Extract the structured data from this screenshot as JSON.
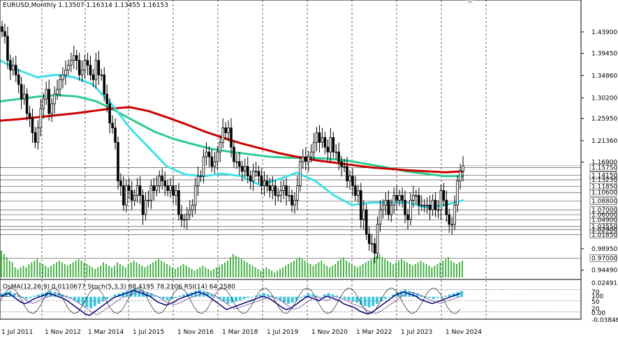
{
  "header": {
    "symbol_line": "EURUSD,Monthly  1.13507 1.16314 1.13455 1.16153"
  },
  "indicator_header": {
    "label": "OsMA(12,26,9) 0.0110677  Stoch(5,3,3) 88.4195 78.2106  RSI(14) 64.2580"
  },
  "colors": {
    "background": "#ffffff",
    "candle": "#000000",
    "ma_red": "#cc0000",
    "ma_green": "#2ecc8f",
    "ma_cyan": "#40e0e8",
    "volume": "#33aa33",
    "osma": "#40c8e0",
    "stoch_main": "#000080",
    "stoch_signal": "#000000",
    "rsi": "#7a4a9a",
    "grid": "#000000",
    "price_box": "#ffffff",
    "current_box": "#ffffff"
  },
  "chart_data": {
    "type": "candlestick",
    "symbol": "EURUSD",
    "timeframe": "Monthly",
    "ohlc_last": {
      "open": 1.13507,
      "high": 1.16314,
      "low": 1.13455,
      "close": 1.16153
    },
    "ylim": [
      0.93,
      1.485
    ],
    "x_axis_labels": [
      "1 Jul 2011",
      "1 Nov 2012",
      "1 Mar 2014",
      "1 Jul 2015",
      "1 Nov 2016",
      "1 Mar 2018",
      "1 Jul 2019",
      "1 Nov 2020",
      "1 Mar 2022",
      "1 Jul 2023",
      "1 Nov 2024"
    ],
    "y_axis_labels": [
      "1.43900",
      "1.39450",
      "1.34860",
      "1.30200",
      "1.25950",
      "1.21360",
      "1.16900",
      "1.15750",
      "1.14150",
      "1.13230",
      "1.11850",
      "1.10600",
      "1.08800",
      "1.07000",
      "1.06000",
      "1.04900",
      "1.03550",
      "1.02900",
      "1.01850",
      "0.98950",
      "0.97000",
      "0.94490"
    ],
    "horizontal_levels": [
      1.1575,
      1.1415,
      1.1323,
      1.1185,
      1.106,
      1.088,
      1.07,
      1.06,
      1.049,
      1.0355,
      1.029,
      1.0185,
      0.97
    ],
    "current_price": 1.16153,
    "close_series": [
      1.44,
      1.43,
      1.38,
      1.36,
      1.37,
      1.35,
      1.33,
      1.3,
      1.31,
      1.27,
      1.26,
      1.23,
      1.21,
      1.24,
      1.28,
      1.3,
      1.32,
      1.27,
      1.29,
      1.31,
      1.32,
      1.34,
      1.35,
      1.36,
      1.37,
      1.38,
      1.39,
      1.38,
      1.35,
      1.36,
      1.38,
      1.37,
      1.35,
      1.34,
      1.38,
      1.35,
      1.35,
      1.31,
      1.29,
      1.25,
      1.24,
      1.21,
      1.13,
      1.12,
      1.08,
      1.12,
      1.11,
      1.09,
      1.1,
      1.12,
      1.1,
      1.06,
      1.09,
      1.09,
      1.12,
      1.11,
      1.12,
      1.14,
      1.13,
      1.12,
      1.11,
      1.12,
      1.1,
      1.11,
      1.06,
      1.05,
      1.05,
      1.06,
      1.07,
      1.08,
      1.12,
      1.14,
      1.14,
      1.18,
      1.19,
      1.18,
      1.16,
      1.17,
      1.19,
      1.21,
      1.24,
      1.23,
      1.24,
      1.2,
      1.17,
      1.17,
      1.16,
      1.15,
      1.16,
      1.14,
      1.13,
      1.15,
      1.15,
      1.14,
      1.12,
      1.13,
      1.12,
      1.11,
      1.12,
      1.1,
      1.1,
      1.11,
      1.12,
      1.1,
      1.1,
      1.08,
      1.09,
      1.12,
      1.17,
      1.18,
      1.17,
      1.18,
      1.19,
      1.21,
      1.23,
      1.21,
      1.22,
      1.2,
      1.19,
      1.22,
      1.19,
      1.19,
      1.17,
      1.16,
      1.16,
      1.13,
      1.14,
      1.12,
      1.1,
      1.11,
      1.05,
      1.07,
      1.02,
      1.0,
      1.0,
      0.98,
      1.04,
      1.07,
      1.08,
      1.09,
      1.06,
      1.08,
      1.1,
      1.09,
      1.1,
      1.09,
      1.06,
      1.05,
      1.09,
      1.1,
      1.1,
      1.08,
      1.08,
      1.08,
      1.08,
      1.07,
      1.09,
      1.07,
      1.07,
      1.11,
      1.09,
      1.06,
      1.04,
      1.04,
      1.08,
      1.13,
      1.15,
      1.16153
    ],
    "ma_red": [
      1.255,
      1.258,
      1.262,
      1.266,
      1.27,
      1.275,
      1.28,
      1.283,
      1.275,
      1.262,
      1.248,
      1.233,
      1.22,
      1.208,
      1.198,
      1.188,
      1.18,
      1.173,
      1.168,
      1.163,
      1.158,
      1.155,
      1.152,
      1.15,
      1.148,
      1.15
    ],
    "ma_green": [
      1.295,
      1.3,
      1.305,
      1.308,
      1.305,
      1.295,
      1.275,
      1.253,
      1.232,
      1.217,
      1.206,
      1.196,
      1.19,
      1.185,
      1.18,
      1.178,
      1.178,
      1.176,
      1.172,
      1.165,
      1.158,
      1.15,
      1.145,
      1.14,
      1.14
    ],
    "ma_cyan": [
      1.38,
      1.36,
      1.345,
      1.35,
      1.345,
      1.33,
      1.29,
      1.24,
      1.2,
      1.16,
      1.143,
      1.14,
      1.145,
      1.14,
      1.122,
      1.133,
      1.147,
      1.13,
      1.1,
      1.08,
      1.085,
      1.085,
      1.085,
      1.075,
      1.08,
      1.09
    ],
    "volume": [
      0.8,
      0.7,
      0.6,
      0.5,
      0.45,
      0.3,
      0.25,
      0.3,
      0.35,
      0.3,
      0.4,
      0.45,
      0.5,
      0.55,
      0.45,
      0.4,
      0.35,
      0.3,
      0.35,
      0.4,
      0.45,
      0.5,
      0.45,
      0.4,
      0.35,
      0.4,
      0.45,
      0.5,
      0.55,
      0.5,
      0.45,
      0.4,
      0.35,
      0.3,
      0.25,
      0.3,
      0.35,
      0.45,
      0.4,
      0.35,
      0.3,
      0.35,
      0.45,
      0.4,
      0.35,
      0.3,
      0.4,
      0.45,
      0.5,
      0.45,
      0.4,
      0.35,
      0.3,
      0.35,
      0.4,
      0.45,
      0.5,
      0.55,
      0.5,
      0.45,
      0.4,
      0.35,
      0.3,
      0.25,
      0.3,
      0.35,
      0.4,
      0.35,
      0.3,
      0.25,
      0.2,
      0.25,
      0.3,
      0.35,
      0.3,
      0.25,
      0.2,
      0.25,
      0.3,
      0.35,
      0.4,
      0.45,
      0.5,
      0.6,
      0.7,
      0.65,
      0.6,
      0.55,
      0.5,
      0.45,
      0.4,
      0.35,
      0.3,
      0.25,
      0.2,
      0.25,
      0.3,
      0.25,
      0.2,
      0.15,
      0.2,
      0.25,
      0.3,
      0.35,
      0.4,
      0.45,
      0.5,
      0.55,
      0.6,
      0.55,
      0.5,
      0.45,
      0.4,
      0.35,
      0.4,
      0.45,
      0.5,
      0.4,
      0.35,
      0.3,
      0.35,
      0.4,
      0.5,
      0.55,
      0.6,
      0.5,
      0.45,
      0.4,
      0.35,
      0.3,
      0.35,
      0.4,
      0.45,
      0.5,
      0.55,
      0.6,
      0.65,
      0.7,
      0.6,
      0.55,
      0.5,
      0.45,
      0.4,
      0.45,
      0.5,
      0.55,
      0.5,
      0.45,
      0.4,
      0.35,
      0.4,
      0.45,
      0.5,
      0.45,
      0.4,
      0.35,
      0.3,
      0.35,
      0.4,
      0.45,
      0.5,
      0.55,
      0.6,
      0.5,
      0.45,
      0.4,
      0.45,
      0.5,
      0.55,
      0.6,
      0.5,
      0.45,
      0.4,
      0.3
    ],
    "osma": [
      0.3,
      0.4,
      0.5,
      0.3,
      0.1,
      -0.1,
      -0.2,
      -0.1,
      0.1,
      0.2,
      0.3,
      0.4,
      0.5,
      0.4,
      0.3,
      0.2,
      0.1,
      -0.1,
      -0.3,
      -0.5,
      -0.7,
      -0.9,
      -1.0,
      -0.8,
      -0.6,
      -0.4,
      -0.2,
      0.0,
      0.2,
      0.3,
      0.4,
      0.5,
      0.6,
      0.7,
      0.6,
      0.5,
      0.4,
      0.3,
      0.1,
      -0.1,
      -0.2,
      -0.3,
      -0.2,
      -0.1,
      0.1,
      0.2,
      0.3,
      0.4,
      0.5,
      0.6,
      0.5,
      0.4,
      0.2,
      0.0,
      -0.2,
      -0.4,
      -0.6,
      -0.5,
      -0.4,
      -0.3,
      -0.2,
      -0.1,
      0.0,
      0.1,
      0.2,
      0.3,
      0.2,
      0.1,
      -0.1,
      -0.3,
      -0.5,
      -0.6,
      -0.5,
      -0.3,
      -0.1,
      0.1,
      0.3,
      0.2,
      0.1,
      0.0,
      0.2,
      0.3,
      0.2,
      0.1,
      0.0,
      -0.2,
      -0.3,
      -0.4,
      -0.5,
      -0.7,
      -0.8,
      -0.9,
      -0.8,
      -0.6,
      -0.4,
      -0.2,
      0.0,
      0.2,
      0.4,
      0.5,
      0.6,
      0.5,
      0.4,
      0.3,
      0.1,
      0.0,
      -0.1,
      -0.2,
      -0.1,
      0.0,
      0.1,
      0.2,
      0.3,
      0.4,
      0.5
    ],
    "osma_range": [
      -0.03846,
      0.02491
    ],
    "stoch_levels": [
      80,
      50,
      20
    ],
    "rsi_levels": [
      70,
      30
    ],
    "indicator_axis_labels": [
      "0.024918",
      "70",
      "100",
      "50",
      "20",
      "0.00",
      "-0.038461"
    ]
  }
}
